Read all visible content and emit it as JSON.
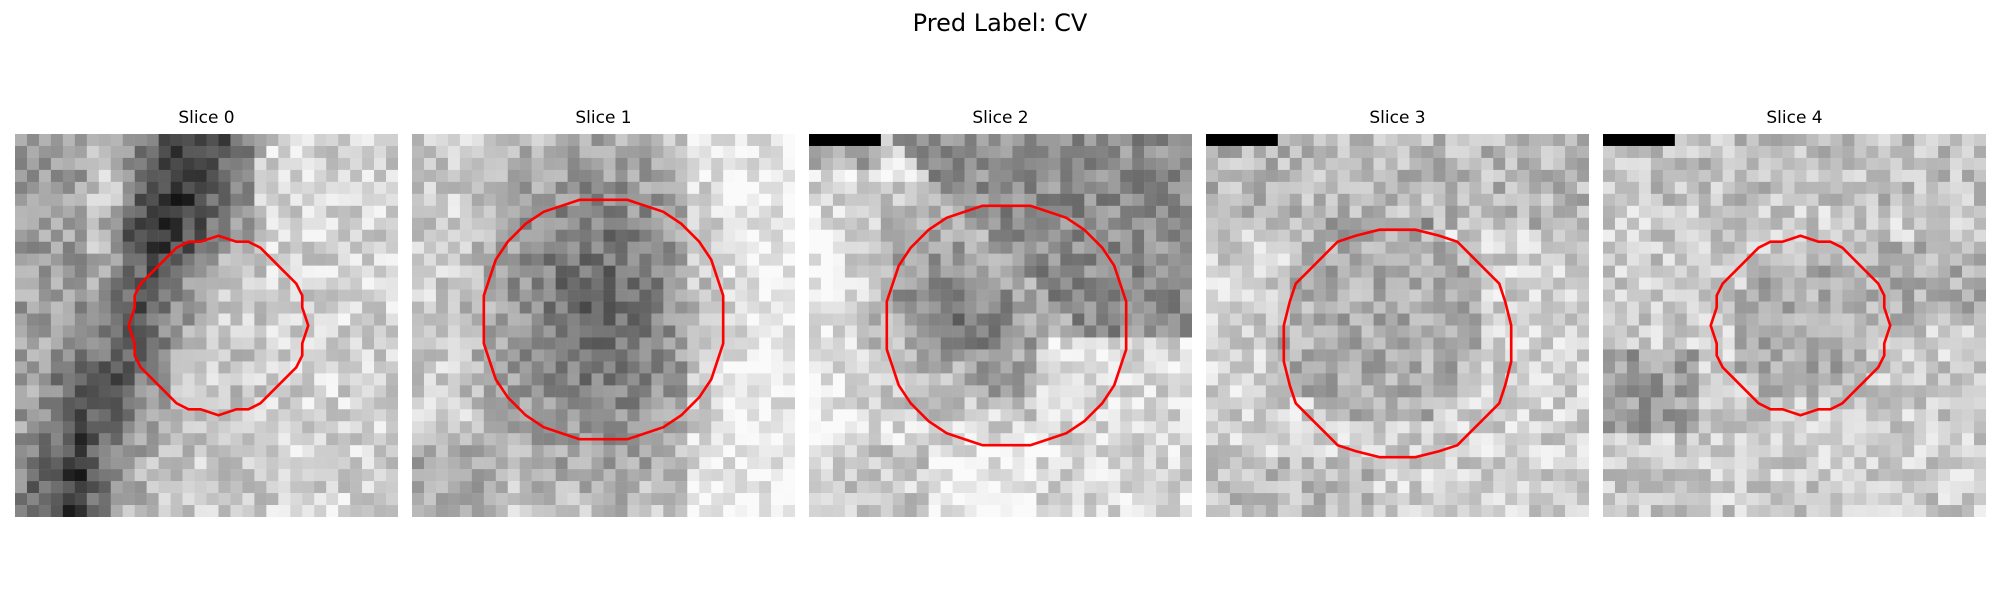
{
  "figure": {
    "title": "Pred Label: CV",
    "contour_color": "#ff0000",
    "cmap": "gray"
  },
  "slices": [
    {
      "title": "Slice 0",
      "pattern": "diagonal-dark-band-left",
      "contour": "small"
    },
    {
      "title": "Slice 1",
      "pattern": "dark-center",
      "contour": "large"
    },
    {
      "title": "Slice 2",
      "pattern": "dark-blob-left-with-bar",
      "contour": "large"
    },
    {
      "title": "Slice 3",
      "pattern": "mostly-light-with-bar",
      "contour": "medium"
    },
    {
      "title": "Slice 4",
      "pattern": "light-mottled-with-bar",
      "contour": "small"
    }
  ]
}
